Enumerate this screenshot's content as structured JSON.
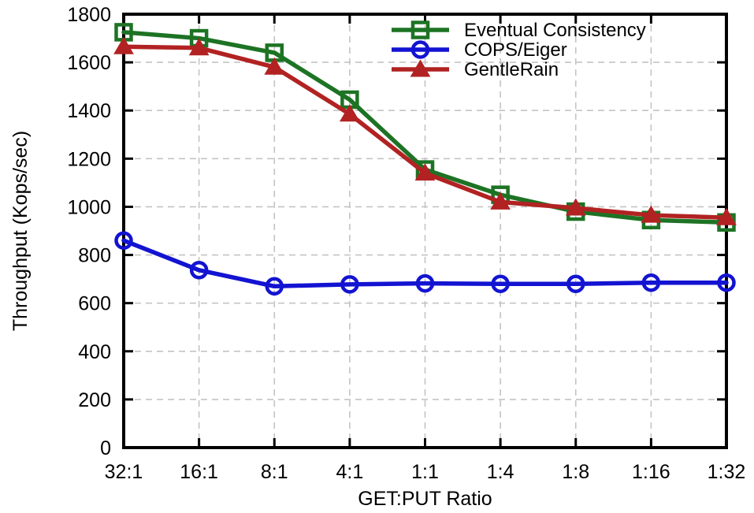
{
  "chart_data": {
    "type": "line",
    "title": "",
    "xlabel": "GET:PUT Ratio",
    "ylabel": "Throughput (Kops/sec)",
    "categories": [
      "32:1",
      "16:1",
      "8:1",
      "4:1",
      "1:1",
      "1:4",
      "1:8",
      "1:16",
      "1:32"
    ],
    "series": [
      {
        "name": "Eventual Consistency",
        "color": "#1d7324",
        "marker": "open-square",
        "values": [
          1725,
          1700,
          1640,
          1445,
          1155,
          1050,
          980,
          945,
          935
        ]
      },
      {
        "name": "COPS/Eiger",
        "color": "#1313d2",
        "marker": "open-circle",
        "values": [
          860,
          737,
          670,
          678,
          682,
          680,
          680,
          685,
          685
        ]
      },
      {
        "name": "GentleRain",
        "color": "#b22222",
        "marker": "filled-triangle",
        "values": [
          1665,
          1660,
          1580,
          1385,
          1140,
          1020,
          995,
          965,
          955
        ]
      }
    ],
    "ylim": [
      0,
      1800
    ],
    "ytick_step": 200,
    "ytick_labels": [
      "0",
      "200",
      "400",
      "600",
      "800",
      "1000",
      "1200",
      "1400",
      "1600",
      "1800"
    ],
    "grid": true,
    "grid_style": "dashed",
    "grid_color": "#c4c4c4",
    "axis_color": "#000000",
    "background": "#ffffff",
    "legend_position": "top-right-inside",
    "legend_entries": [
      "Eventual Consistency",
      "COPS/Eiger",
      "GentleRain"
    ]
  }
}
